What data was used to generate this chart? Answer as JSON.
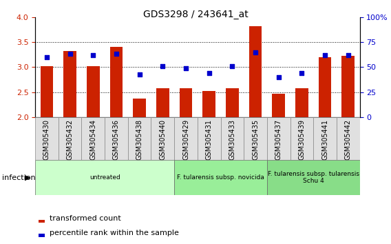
{
  "title": "GDS3298 / 243641_at",
  "categories": [
    "GSM305430",
    "GSM305432",
    "GSM305434",
    "GSM305436",
    "GSM305438",
    "GSM305440",
    "GSM305429",
    "GSM305431",
    "GSM305433",
    "GSM305435",
    "GSM305437",
    "GSM305439",
    "GSM305441",
    "GSM305442"
  ],
  "bar_values": [
    3.02,
    3.32,
    3.02,
    3.4,
    2.37,
    2.58,
    2.58,
    2.52,
    2.58,
    3.82,
    2.47,
    2.58,
    3.2,
    3.22
  ],
  "dot_values": [
    60,
    63,
    62,
    63,
    43,
    51,
    49,
    44,
    51,
    65,
    40,
    44,
    62,
    62
  ],
  "ylim_left": [
    2,
    4
  ],
  "ylim_right": [
    0,
    100
  ],
  "yticks_left": [
    2.0,
    2.5,
    3.0,
    3.5,
    4.0
  ],
  "yticks_right": [
    0,
    25,
    50,
    75,
    100
  ],
  "bar_color": "#cc2200",
  "dot_color": "#0000cc",
  "bar_bottom": 2,
  "groups": [
    {
      "label": "untreated",
      "start": 0,
      "end": 5,
      "color": "#ccffcc"
    },
    {
      "label": "F. tularensis subsp. novicida",
      "start": 6,
      "end": 9,
      "color": "#99ee99"
    },
    {
      "label": "F. tularensis subsp. tularensis\nSchu 4",
      "start": 10,
      "end": 13,
      "color": "#88dd88"
    }
  ],
  "legend_bar": "transformed count",
  "legend_dot": "percentile rank within the sample",
  "tick_label_bg": "#e0e0e0",
  "tick_border": "#888888"
}
